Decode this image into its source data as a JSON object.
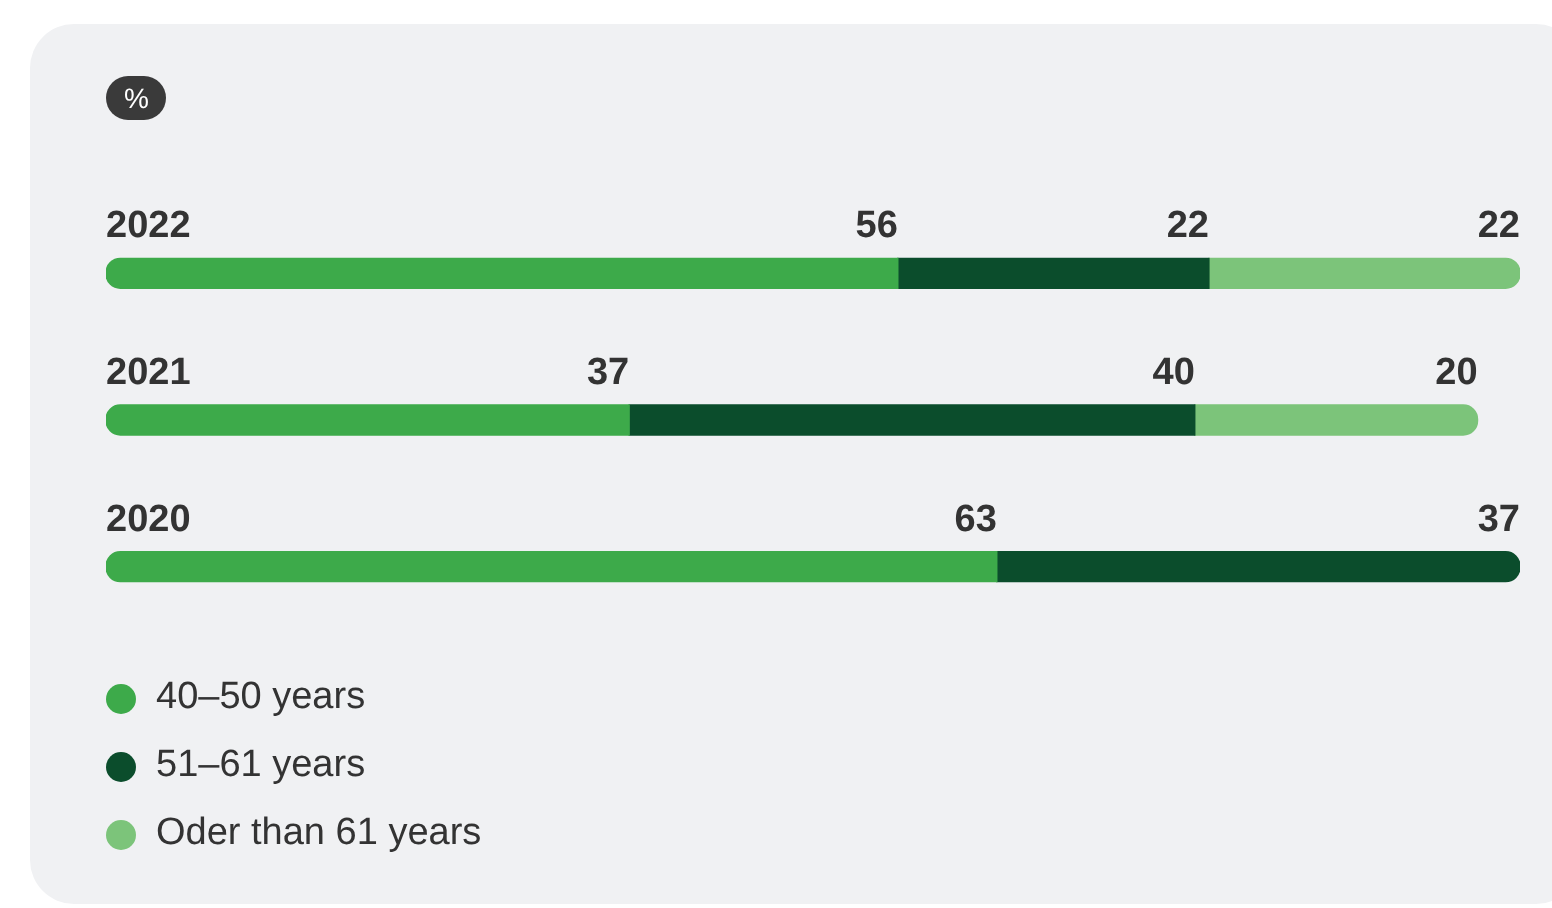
{
  "chart_data": {
    "type": "bar",
    "orientation": "horizontal",
    "stacked": true,
    "title": "%",
    "categories": [
      "2022",
      "2021",
      "2020"
    ],
    "series": [
      {
        "name": "40–50 years",
        "color": "#3daa4a",
        "values": [
          56,
          37,
          63
        ]
      },
      {
        "name": "51–61 years",
        "color": "#0b4d2c",
        "values": [
          22,
          40,
          37
        ]
      },
      {
        "name": "Oder than 61 years",
        "color": "#7cc47a",
        "values": [
          22,
          20,
          null
        ]
      }
    ],
    "xlim": [
      0,
      100
    ],
    "data_labels": true,
    "tick_labels": "y",
    "legend": "bottom"
  }
}
